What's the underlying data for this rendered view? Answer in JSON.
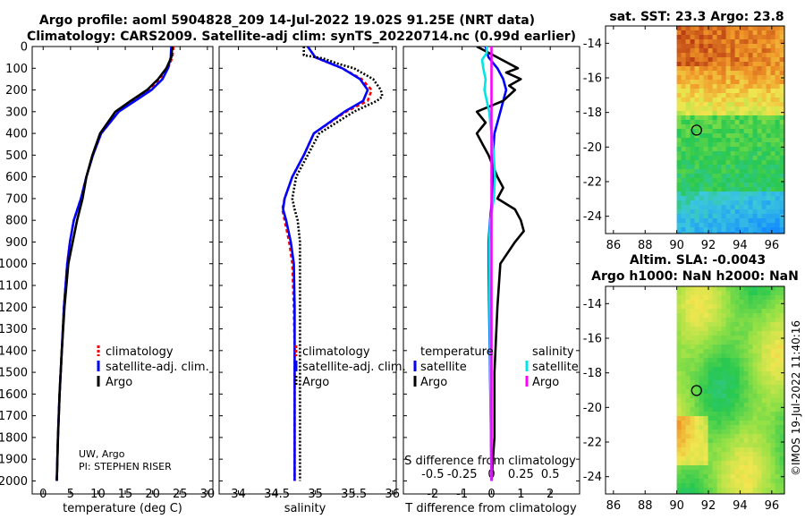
{
  "header": {
    "title_line1": "Argo profile: aoml 5904828_209 14-Jul-2022 19.02S 91.25E (NRT data)",
    "title_line2": "Climatology: CARS2009. Satellite-adj clim: synTS_20220714.nc (0.99d earlier)"
  },
  "colors": {
    "climatology": "#ff0000",
    "satellite_adj": "#0000ff",
    "argo": "#000000",
    "sal_satellite": "#00e5e5",
    "sal_argo": "#ff00ff"
  },
  "credits": {
    "line1": "UW, Argo",
    "line2": "PI: STEPHEN RISER",
    "stamp": "©IMOS 19-Jul-2022 11:40:16"
  },
  "chart_data": [
    {
      "type": "line",
      "panel": "temperature",
      "xlabel": "temperature (deg C)",
      "xlim": [
        -2,
        31
      ],
      "xticks": [
        0,
        5,
        10,
        15,
        20,
        25,
        30
      ],
      "xtick_labels": [
        "0",
        "5",
        "10",
        "15",
        "20",
        "25",
        "30"
      ],
      "ylim": [
        0,
        2060
      ],
      "yreversed": true,
      "yticks": [
        0,
        100,
        200,
        300,
        400,
        500,
        600,
        700,
        800,
        900,
        1000,
        1100,
        1200,
        1300,
        1400,
        1500,
        1600,
        1700,
        1800,
        1900,
        2000
      ],
      "ytick_labels": [
        "0",
        "100",
        "200",
        "300",
        "400",
        "500",
        "600",
        "700",
        "800",
        "900",
        "1000",
        "1100",
        "1200",
        "1300",
        "1400",
        "1500",
        "1600",
        "1700",
        "1800",
        "1900",
        "2000"
      ],
      "legend_position": "lower-right",
      "series": [
        {
          "name": "climatology",
          "style": "dashed",
          "depth": [
            0,
            50,
            100,
            150,
            200,
            250,
            300,
            400,
            500,
            600,
            700,
            800,
            900,
            1000,
            1200,
            1400,
            1600,
            1800,
            2000
          ],
          "values": [
            23.8,
            23.6,
            22.8,
            21.2,
            19.5,
            16.5,
            13.8,
            10.6,
            9.1,
            7.9,
            6.9,
            5.6,
            4.9,
            4.4,
            3.8,
            3.4,
            3.0,
            2.7,
            2.5
          ]
        },
        {
          "name": "satellite-adj. clim.",
          "style": "solid",
          "depth": [
            0,
            50,
            100,
            150,
            200,
            250,
            300,
            400,
            500,
            600,
            700,
            800,
            900,
            1000,
            1200,
            1400,
            1600,
            1800,
            2000
          ],
          "values": [
            23.4,
            23.3,
            22.8,
            21.8,
            19.8,
            16.8,
            13.8,
            10.6,
            9.1,
            7.9,
            6.9,
            5.6,
            4.9,
            4.4,
            3.8,
            3.4,
            3.0,
            2.7,
            2.5
          ]
        },
        {
          "name": "Argo",
          "style": "solid",
          "depth": [
            0,
            50,
            100,
            150,
            200,
            250,
            300,
            400,
            500,
            600,
            700,
            800,
            900,
            1000,
            1200,
            1400,
            1600,
            1800,
            2000
          ],
          "values": [
            23.6,
            23.4,
            22.5,
            21.0,
            19.0,
            16.0,
            13.2,
            10.4,
            9.0,
            7.9,
            7.2,
            6.2,
            5.4,
            4.6,
            3.9,
            3.4,
            3.0,
            2.7,
            2.5
          ]
        }
      ]
    },
    {
      "type": "line",
      "panel": "salinity",
      "xlabel": "salinity",
      "xlim": [
        33.75,
        36.05
      ],
      "xticks": [
        34,
        34.5,
        35,
        35.5,
        36
      ],
      "xtick_labels": [
        "34",
        "34.5",
        "35",
        "35.5",
        "36"
      ],
      "ylim": [
        0,
        2060
      ],
      "yreversed": true,
      "legend_position": "lower-right",
      "series": [
        {
          "name": "climatology",
          "style": "dashed",
          "depth": [
            0,
            50,
            100,
            150,
            200,
            250,
            300,
            400,
            500,
            600,
            700,
            750,
            800,
            900,
            1000,
            1200,
            1400,
            1600,
            1800,
            2000
          ],
          "values": [
            34.9,
            35.0,
            35.35,
            35.6,
            35.73,
            35.68,
            35.4,
            34.98,
            34.85,
            34.7,
            34.6,
            34.57,
            34.6,
            34.66,
            34.7,
            34.72,
            34.73,
            34.73,
            34.73,
            34.73
          ]
        },
        {
          "name": "satellite-adj. clim.",
          "style": "solid",
          "depth": [
            0,
            50,
            100,
            150,
            200,
            250,
            300,
            400,
            500,
            600,
            700,
            750,
            800,
            900,
            1000,
            1200,
            1400,
            1600,
            1800,
            2000
          ],
          "values": [
            34.9,
            35.0,
            35.35,
            35.58,
            35.68,
            35.62,
            35.38,
            34.98,
            34.85,
            34.7,
            34.6,
            34.58,
            34.62,
            34.68,
            34.72,
            34.73,
            34.73,
            34.73,
            34.73,
            34.73
          ]
        },
        {
          "name": "Argo",
          "style": "dotted",
          "depth": [
            0,
            40,
            55,
            80,
            100,
            150,
            200,
            230,
            250,
            300,
            400,
            500,
            600,
            700,
            750,
            800,
            900,
            1000,
            1200,
            1400,
            1600,
            1800,
            2000
          ],
          "values": [
            34.85,
            34.85,
            35.1,
            35.3,
            35.5,
            35.75,
            35.85,
            35.87,
            35.8,
            35.5,
            35.05,
            34.9,
            34.75,
            34.7,
            34.73,
            34.77,
            34.8,
            34.8,
            34.8,
            34.8,
            34.8,
            34.8,
            34.8
          ]
        }
      ]
    },
    {
      "type": "line",
      "panel": "difference",
      "xlabel": "T difference from climatology",
      "xlim": [
        -3,
        3
      ],
      "xticks": [
        -2,
        -1,
        0,
        1,
        2
      ],
      "xtick_labels": [
        "-2",
        "-1",
        "0",
        "1",
        "2"
      ],
      "top_axis_label": "S difference from climatology",
      "top_xlim": [
        -0.75,
        0.75
      ],
      "top_xticks": [
        -0.5,
        -0.25,
        0,
        0.25,
        0.5
      ],
      "top_xtick_labels": [
        "-0.5",
        "-0.25",
        "0",
        "0.25",
        "0.5"
      ],
      "ylim": [
        0,
        2060
      ],
      "yreversed": true,
      "legend_titles": [
        "temperature",
        "salinity"
      ],
      "series": [
        {
          "name": "satellite",
          "group": "temperature",
          "axis": "T",
          "depth": [
            0,
            50,
            100,
            150,
            200,
            300,
            400,
            500,
            600,
            700,
            800,
            900,
            1000,
            1500,
            2000
          ],
          "values": [
            -0.2,
            -0.1,
            0.2,
            0.4,
            0.5,
            0.3,
            0.1,
            0.05,
            0.05,
            0.02,
            -0.05,
            -0.1,
            -0.1,
            -0.05,
            0.0
          ]
        },
        {
          "name": "Argo",
          "group": "temperature",
          "axis": "T",
          "depth": [
            0,
            50,
            100,
            120,
            150,
            180,
            200,
            250,
            300,
            350,
            400,
            450,
            500,
            600,
            650,
            700,
            750,
            800,
            850,
            900,
            1000,
            1200,
            1500,
            1800,
            2000
          ],
          "values": [
            -0.5,
            0.2,
            0.9,
            0.5,
            1.0,
            0.6,
            0.8,
            0.4,
            -0.5,
            -0.2,
            -0.5,
            -0.3,
            -0.1,
            0.2,
            0.4,
            0.2,
            0.8,
            1.0,
            1.1,
            0.8,
            0.3,
            0.2,
            0.1,
            0.1,
            0.0
          ]
        },
        {
          "name": "satellite",
          "group": "salinity",
          "axis": "S",
          "depth": [
            0,
            30,
            60,
            100,
            150,
            200,
            300,
            400,
            500,
            600,
            700,
            800,
            900,
            1000,
            1500,
            2000
          ],
          "values": [
            -0.04,
            -0.04,
            -0.08,
            -0.07,
            -0.05,
            -0.06,
            -0.02,
            0.0,
            0.02,
            0.03,
            0.02,
            -0.01,
            -0.02,
            -0.02,
            -0.01,
            0.0
          ]
        },
        {
          "name": "Argo",
          "group": "salinity",
          "axis": "S",
          "depth": [
            0,
            2000
          ],
          "values": [
            0,
            0
          ]
        }
      ]
    },
    {
      "type": "heatmap",
      "panel": "sst_map",
      "title": "sat. SST: 23.3 Argo: 23.8",
      "xlim": [
        85.5,
        96.8
      ],
      "ylim": [
        -25,
        -13
      ],
      "xticks": [
        86,
        88,
        90,
        92,
        94,
        96
      ],
      "xtick_labels": [
        "86",
        "88",
        "90",
        "92",
        "94",
        "96"
      ],
      "yticks": [
        -14,
        -16,
        -18,
        -20,
        -22,
        -24
      ],
      "ytick_labels": [
        "-14",
        "-16",
        "-18",
        "-20",
        "-22",
        "-24"
      ],
      "data_lon_min": 90,
      "float_position": [
        91.25,
        -19.02
      ]
    },
    {
      "type": "heatmap",
      "panel": "sla_map",
      "title_line1": "Altim. SLA: -0.0043",
      "title_line2": "Argo h1000: NaN h2000: NaN",
      "xlim": [
        85.5,
        96.8
      ],
      "ylim": [
        -25,
        -13
      ],
      "xticks": [
        86,
        88,
        90,
        92,
        94,
        96
      ],
      "xtick_labels": [
        "86",
        "88",
        "90",
        "92",
        "94",
        "96"
      ],
      "yticks": [
        -14,
        -16,
        -18,
        -20,
        -22,
        -24
      ],
      "ytick_labels": [
        "-14",
        "-16",
        "-18",
        "-20",
        "-22",
        "-24"
      ],
      "data_lon_min": 90,
      "float_position": [
        91.25,
        -19.02
      ]
    }
  ]
}
